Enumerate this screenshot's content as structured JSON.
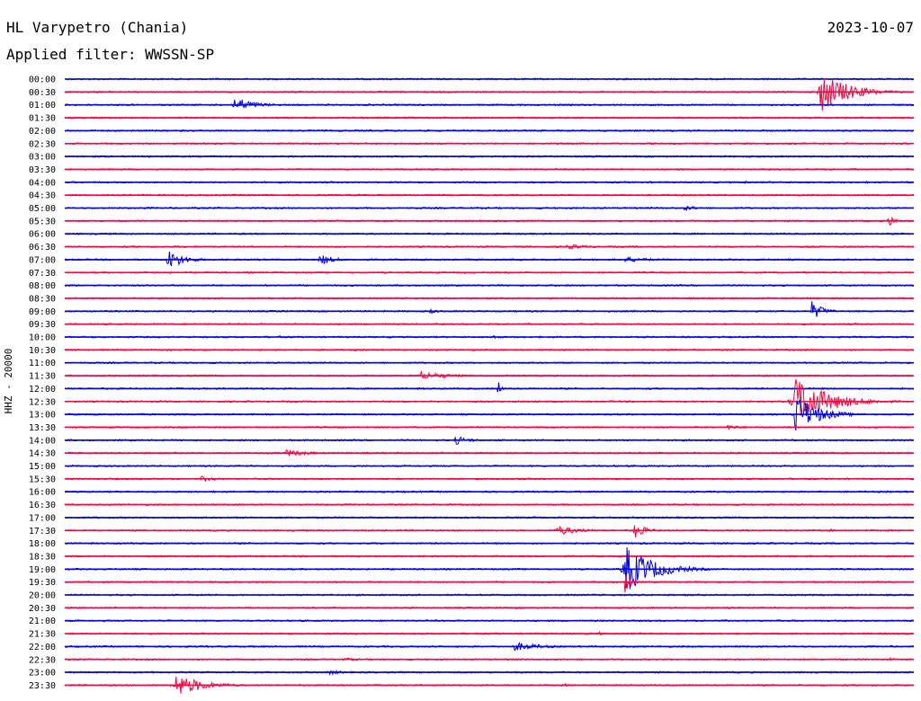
{
  "header": {
    "station": "HL Varypetro (Chania)",
    "date": "2023-10-07",
    "filter": "Applied filter: WWSSN-SP"
  },
  "chart_data": {
    "type": "line",
    "ylabel": "HHZ - 20000",
    "row_labels": [
      "00:00",
      "00:30",
      "01:00",
      "01:30",
      "02:00",
      "02:30",
      "03:00",
      "03:30",
      "04:00",
      "04:30",
      "05:00",
      "05:30",
      "06:00",
      "06:30",
      "07:00",
      "07:30",
      "08:00",
      "08:30",
      "09:00",
      "09:30",
      "10:00",
      "10:30",
      "11:00",
      "11:30",
      "12:00",
      "12:30",
      "13:00",
      "13:30",
      "14:00",
      "14:30",
      "15:00",
      "15:30",
      "16:00",
      "16:30",
      "17:00",
      "17:30",
      "18:00",
      "18:30",
      "19:00",
      "19:30",
      "20:00",
      "20:30",
      "21:00",
      "21:30",
      "22:00",
      "22:30",
      "23:00",
      "23:30"
    ],
    "colors": [
      "#0000e0",
      "#ff0040"
    ],
    "events": [
      {
        "row": 1,
        "pos": 0.89,
        "amp": 24,
        "dur": 0.05
      },
      {
        "row": 2,
        "pos": 0.2,
        "amp": 9,
        "dur": 0.035
      },
      {
        "row": 3,
        "pos": 0.31,
        "amp": 2,
        "dur": 0.01
      },
      {
        "row": 8,
        "pos": 0.8,
        "amp": 2,
        "dur": 0.02
      },
      {
        "row": 10,
        "pos": 0.73,
        "amp": 3,
        "dur": 0.03
      },
      {
        "row": 11,
        "pos": 0.97,
        "amp": 8,
        "dur": 0.012
      },
      {
        "row": 13,
        "pos": 0.59,
        "amp": 3,
        "dur": 0.05
      },
      {
        "row": 14,
        "pos": 0.12,
        "amp": 12,
        "dur": 0.03
      },
      {
        "row": 14,
        "pos": 0.3,
        "amp": 7,
        "dur": 0.025
      },
      {
        "row": 14,
        "pos": 0.66,
        "amp": 3,
        "dur": 0.06
      },
      {
        "row": 18,
        "pos": 0.43,
        "amp": 3,
        "dur": 0.015
      },
      {
        "row": 18,
        "pos": 0.88,
        "amp": 11,
        "dur": 0.02
      },
      {
        "row": 20,
        "pos": 0.25,
        "amp": 2,
        "dur": 0.02
      },
      {
        "row": 20,
        "pos": 0.5,
        "amp": 3,
        "dur": 0.02
      },
      {
        "row": 23,
        "pos": 0.42,
        "amp": 5,
        "dur": 0.05
      },
      {
        "row": 24,
        "pos": 0.51,
        "amp": 12,
        "dur": 0.005
      },
      {
        "row": 25,
        "pos": 0.86,
        "amp": 28,
        "dur": 0.06
      },
      {
        "row": 26,
        "pos": 0.86,
        "amp": 24,
        "dur": 0.04
      },
      {
        "row": 27,
        "pos": 0.78,
        "amp": 3,
        "dur": 0.03
      },
      {
        "row": 28,
        "pos": 0.46,
        "amp": 5,
        "dur": 0.03
      },
      {
        "row": 29,
        "pos": 0.26,
        "amp": 4,
        "dur": 0.05
      },
      {
        "row": 31,
        "pos": 0.16,
        "amp": 3,
        "dur": 0.04
      },
      {
        "row": 35,
        "pos": 0.58,
        "amp": 6,
        "dur": 0.04
      },
      {
        "row": 35,
        "pos": 0.67,
        "amp": 10,
        "dur": 0.02
      },
      {
        "row": 35,
        "pos": 0.9,
        "amp": 3,
        "dur": 0.01
      },
      {
        "row": 38,
        "pos": 0.66,
        "amp": 28,
        "dur": 0.05
      },
      {
        "row": 39,
        "pos": 0.66,
        "amp": 14,
        "dur": 0.01
      },
      {
        "row": 43,
        "pos": 0.63,
        "amp": 2,
        "dur": 0.01
      },
      {
        "row": 44,
        "pos": 0.53,
        "amp": 5,
        "dur": 0.05
      },
      {
        "row": 45,
        "pos": 0.33,
        "amp": 2,
        "dur": 0.03
      },
      {
        "row": 45,
        "pos": 0.97,
        "amp": 3,
        "dur": 0.01
      },
      {
        "row": 46,
        "pos": 0.31,
        "amp": 3,
        "dur": 0.03
      },
      {
        "row": 47,
        "pos": 0.13,
        "amp": 13,
        "dur": 0.05
      },
      {
        "row": 47,
        "pos": 0.59,
        "amp": 2,
        "dur": 0.01
      }
    ]
  }
}
